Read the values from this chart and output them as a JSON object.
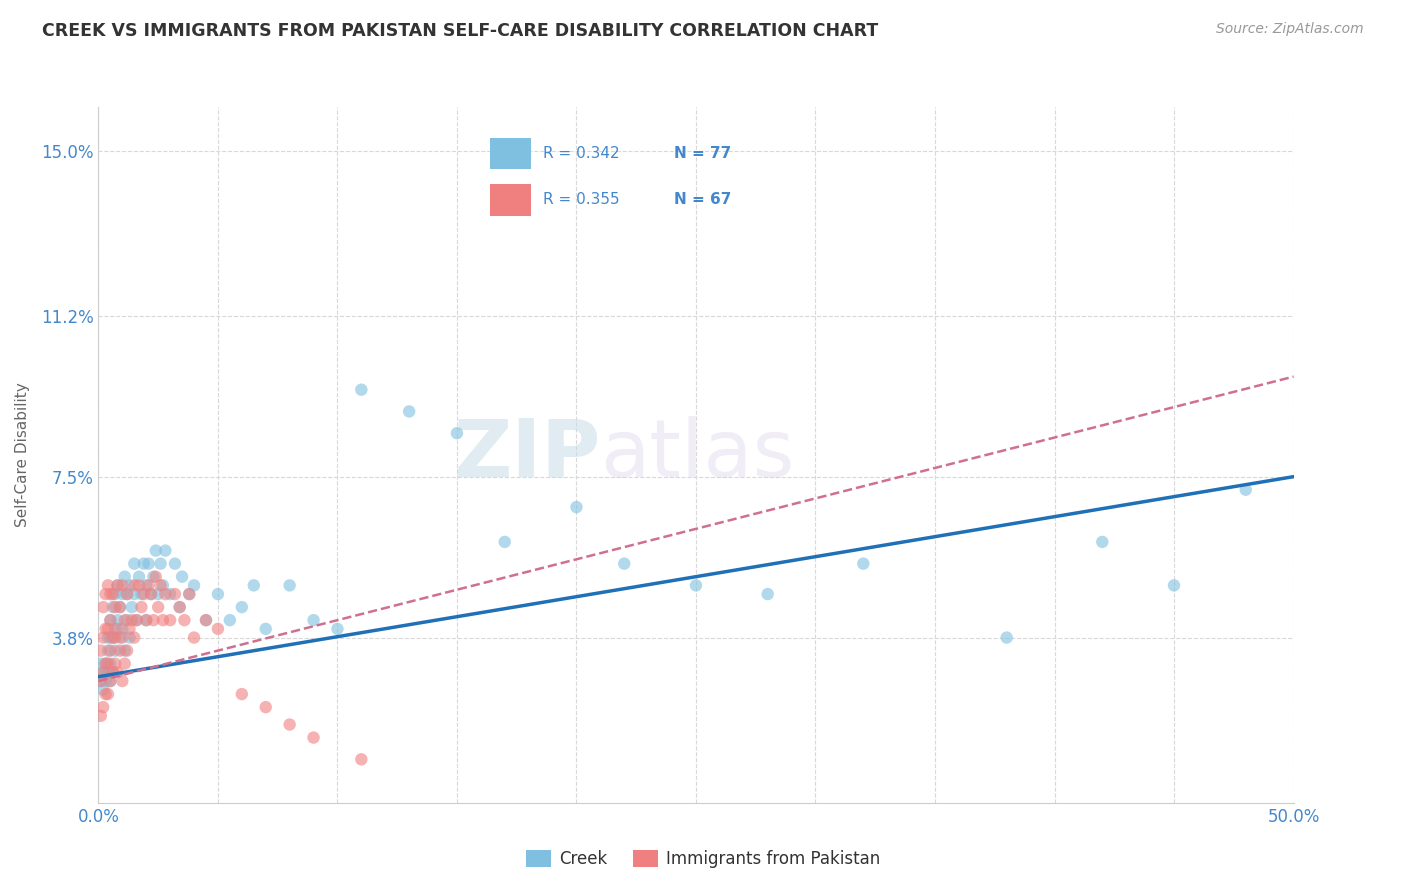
{
  "title": "CREEK VS IMMIGRANTS FROM PAKISTAN SELF-CARE DISABILITY CORRELATION CHART",
  "source": "Source: ZipAtlas.com",
  "ylabel": "Self-Care Disability",
  "xlim": [
    0,
    0.5
  ],
  "ylim": [
    0,
    0.16
  ],
  "ytick_positions": [
    0.038,
    0.075,
    0.112,
    0.15
  ],
  "ytick_labels": [
    "3.8%",
    "7.5%",
    "11.2%",
    "15.0%"
  ],
  "creek_color": "#7fbfdf",
  "pakistan_color": "#f08080",
  "creek_line_color": "#2070b8",
  "pakistan_line_color": "#d07090",
  "legend_creek_r": "R = 0.342",
  "legend_creek_n": "N = 77",
  "legend_pakistan_r": "R = 0.355",
  "legend_pakistan_n": "N = 67",
  "watermark": "ZIPatlas",
  "background_color": "#ffffff",
  "grid_color": "#d8d8d8",
  "creek_x": [
    0.001,
    0.001,
    0.002,
    0.002,
    0.003,
    0.003,
    0.003,
    0.004,
    0.004,
    0.004,
    0.005,
    0.005,
    0.005,
    0.005,
    0.006,
    0.006,
    0.006,
    0.007,
    0.007,
    0.007,
    0.008,
    0.008,
    0.009,
    0.009,
    0.01,
    0.01,
    0.011,
    0.011,
    0.012,
    0.012,
    0.013,
    0.013,
    0.014,
    0.015,
    0.015,
    0.016,
    0.017,
    0.018,
    0.019,
    0.02,
    0.02,
    0.021,
    0.022,
    0.023,
    0.024,
    0.025,
    0.026,
    0.027,
    0.028,
    0.03,
    0.032,
    0.034,
    0.035,
    0.038,
    0.04,
    0.045,
    0.05,
    0.055,
    0.06,
    0.065,
    0.07,
    0.08,
    0.09,
    0.1,
    0.11,
    0.13,
    0.15,
    0.17,
    0.2,
    0.22,
    0.25,
    0.28,
    0.32,
    0.38,
    0.42,
    0.45,
    0.48
  ],
  "creek_y": [
    0.028,
    0.032,
    0.026,
    0.03,
    0.03,
    0.028,
    0.032,
    0.035,
    0.03,
    0.038,
    0.032,
    0.028,
    0.038,
    0.042,
    0.03,
    0.038,
    0.045,
    0.035,
    0.04,
    0.048,
    0.042,
    0.05,
    0.038,
    0.045,
    0.04,
    0.048,
    0.035,
    0.052,
    0.042,
    0.048,
    0.05,
    0.038,
    0.045,
    0.048,
    0.055,
    0.042,
    0.052,
    0.048,
    0.055,
    0.042,
    0.05,
    0.055,
    0.048,
    0.052,
    0.058,
    0.048,
    0.055,
    0.05,
    0.058,
    0.048,
    0.055,
    0.045,
    0.052,
    0.048,
    0.05,
    0.042,
    0.048,
    0.042,
    0.045,
    0.05,
    0.04,
    0.05,
    0.042,
    0.04,
    0.095,
    0.09,
    0.085,
    0.06,
    0.068,
    0.055,
    0.05,
    0.048,
    0.055,
    0.038,
    0.06,
    0.05,
    0.072
  ],
  "pakistan_x": [
    0.001,
    0.001,
    0.001,
    0.002,
    0.002,
    0.002,
    0.002,
    0.003,
    0.003,
    0.003,
    0.003,
    0.004,
    0.004,
    0.004,
    0.004,
    0.005,
    0.005,
    0.005,
    0.005,
    0.006,
    0.006,
    0.006,
    0.007,
    0.007,
    0.007,
    0.008,
    0.008,
    0.008,
    0.009,
    0.009,
    0.01,
    0.01,
    0.01,
    0.011,
    0.011,
    0.012,
    0.012,
    0.013,
    0.014,
    0.015,
    0.015,
    0.016,
    0.017,
    0.018,
    0.019,
    0.02,
    0.021,
    0.022,
    0.023,
    0.024,
    0.025,
    0.026,
    0.027,
    0.028,
    0.03,
    0.032,
    0.034,
    0.036,
    0.038,
    0.04,
    0.045,
    0.05,
    0.06,
    0.07,
    0.08,
    0.09,
    0.11
  ],
  "pakistan_y": [
    0.02,
    0.028,
    0.035,
    0.022,
    0.03,
    0.038,
    0.045,
    0.025,
    0.032,
    0.04,
    0.048,
    0.025,
    0.032,
    0.04,
    0.05,
    0.028,
    0.035,
    0.042,
    0.048,
    0.03,
    0.038,
    0.048,
    0.032,
    0.038,
    0.045,
    0.03,
    0.04,
    0.05,
    0.035,
    0.045,
    0.028,
    0.038,
    0.05,
    0.032,
    0.042,
    0.035,
    0.048,
    0.04,
    0.042,
    0.038,
    0.05,
    0.042,
    0.05,
    0.045,
    0.048,
    0.042,
    0.05,
    0.048,
    0.042,
    0.052,
    0.045,
    0.05,
    0.042,
    0.048,
    0.042,
    0.048,
    0.045,
    0.042,
    0.048,
    0.038,
    0.042,
    0.04,
    0.025,
    0.022,
    0.018,
    0.015,
    0.01
  ],
  "creek_trend_x0": 0.0,
  "creek_trend_y0": 0.029,
  "creek_trend_x1": 0.5,
  "creek_trend_y1": 0.075,
  "pakistan_trend_x0": 0.0,
  "pakistan_trend_y0": 0.028,
  "pakistan_trend_x1": 0.5,
  "pakistan_trend_y1": 0.098
}
